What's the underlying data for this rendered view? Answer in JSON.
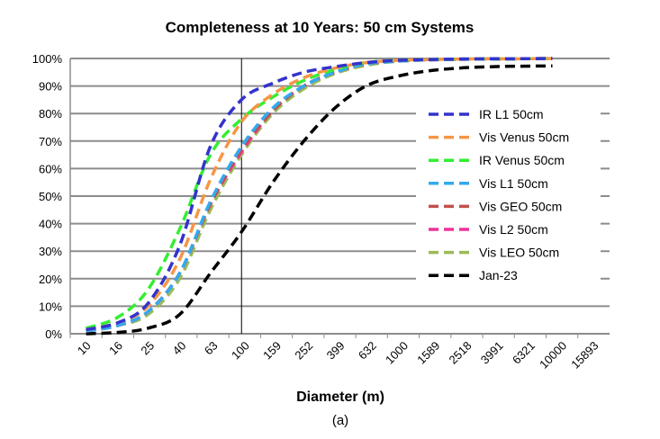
{
  "chart_data": {
    "type": "line",
    "title": "Completeness at 10 Years:  50 cm Systems",
    "xlabel": "Diameter (m)",
    "ylabel": "",
    "caption": "(a)",
    "x_scale": "log",
    "x_ticks": [
      "10",
      "16",
      "25",
      "40",
      "63",
      "100",
      "159",
      "252",
      "399",
      "632",
      "1000",
      "1589",
      "2518",
      "3991",
      "6321",
      "10000",
      "15893"
    ],
    "y_ticks": [
      "0%",
      "10%",
      "20%",
      "30%",
      "40%",
      "50%",
      "60%",
      "70%",
      "80%",
      "90%",
      "100%"
    ],
    "ylim": [
      0,
      100
    ],
    "grid": "horizontal",
    "vline_x": 100,
    "legend_position": "right",
    "x": [
      10,
      16,
      25,
      40,
      63,
      100,
      159,
      252,
      399,
      632,
      1000,
      1589,
      2518,
      3991,
      6321,
      10000
    ],
    "series": [
      {
        "name": "IR L1 50cm",
        "color": "#3333cc",
        "values": [
          1.5,
          4,
          11,
          32,
          68,
          85,
          91,
          95,
          97,
          98.5,
          99.3,
          99.6,
          99.8,
          99.9,
          99.9,
          100
        ]
      },
      {
        "name": "Vis Venus 50cm",
        "color": "#f79646",
        "values": [
          1.5,
          4,
          10,
          27,
          56,
          77,
          87,
          93,
          96.5,
          98.5,
          99.3,
          99.6,
          99.8,
          99.9,
          99.9,
          100
        ]
      },
      {
        "name": "IR Venus 50cm",
        "color": "#33ee33",
        "values": [
          2,
          6,
          16,
          38,
          65,
          78,
          86,
          92,
          96,
          98.5,
          99.3,
          99.6,
          99.8,
          99.9,
          99.9,
          100
        ]
      },
      {
        "name": "Vis L1 50cm",
        "color": "#33aaee",
        "values": [
          1,
          3,
          8,
          22,
          48,
          68,
          82,
          90,
          95,
          98,
          99,
          99.5,
          99.7,
          99.8,
          99.9,
          100
        ]
      },
      {
        "name": "Vis GEO 50cm",
        "color": "#c0504d",
        "values": [
          1,
          3,
          8,
          22,
          47,
          67,
          81,
          90,
          95,
          98,
          99,
          99.5,
          99.7,
          99.8,
          99.9,
          100
        ]
      },
      {
        "name": "Vis L2 50cm",
        "color": "#ee3399",
        "values": [
          1,
          3,
          8,
          22,
          47,
          66,
          81,
          90,
          95,
          98,
          99,
          99.5,
          99.7,
          99.8,
          99.9,
          100
        ]
      },
      {
        "name": "Vis LEO 50cm",
        "color": "#9bbb59",
        "values": [
          1,
          3,
          7,
          20,
          45,
          65,
          80,
          89,
          94.5,
          97.5,
          99,
          99.5,
          99.7,
          99.8,
          99.9,
          100
        ]
      },
      {
        "name": "Jan-23",
        "color": "#000000",
        "values": [
          0,
          0.5,
          2,
          7,
          22,
          37,
          55,
          70,
          82,
          90,
          93.5,
          95.5,
          96.5,
          97,
          97.2,
          97.3
        ]
      }
    ]
  }
}
